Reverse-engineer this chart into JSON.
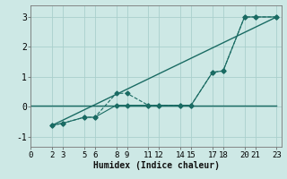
{
  "xlabel": "Humidex (Indice chaleur)",
  "background_color": "#cde8e5",
  "grid_color": "#aacfcc",
  "line_color": "#1a6b63",
  "xtick_positions": [
    0,
    2,
    3,
    5,
    6,
    8,
    9,
    11,
    12,
    14,
    15,
    17,
    18,
    20,
    21,
    23
  ],
  "xtick_labels": [
    "0",
    "2",
    "3",
    "5",
    "6",
    "8",
    "9",
    "11",
    "12",
    "14",
    "15",
    "17",
    "18",
    "20",
    "21",
    "23"
  ],
  "yticks": [
    -1,
    0,
    1,
    2,
    3
  ],
  "xlim": [
    0,
    23.5
  ],
  "ylim": [
    -1.35,
    3.4
  ],
  "lines": [
    {
      "x": [
        0,
        2,
        3,
        5,
        6,
        8,
        9,
        11,
        12,
        14,
        15,
        17,
        18,
        20,
        21,
        23
      ],
      "y": [
        0.05,
        0.05,
        0.05,
        0.05,
        0.05,
        0.05,
        0.05,
        0.05,
        0.05,
        0.05,
        0.05,
        0.05,
        0.05,
        0.05,
        0.05,
        0.05
      ],
      "marker": null,
      "linestyle": "-",
      "linewidth": 1.0,
      "zorder": 2
    },
    {
      "x": [
        2,
        23
      ],
      "y": [
        -0.62,
        3.0
      ],
      "marker": null,
      "linestyle": "-",
      "linewidth": 1.0,
      "zorder": 2
    },
    {
      "x": [
        2,
        3,
        5,
        6,
        8,
        9,
        11,
        12,
        14,
        15,
        17,
        18,
        20,
        21,
        23
      ],
      "y": [
        -0.62,
        -0.55,
        -0.35,
        -0.35,
        0.45,
        0.45,
        0.05,
        0.05,
        0.05,
        0.05,
        1.15,
        1.2,
        3.0,
        3.0,
        3.0
      ],
      "marker": "D",
      "linestyle": "--",
      "linewidth": 0.8,
      "zorder": 3
    },
    {
      "x": [
        2,
        3,
        5,
        6,
        8,
        9,
        11,
        12,
        14,
        15,
        17,
        18,
        20,
        21,
        23
      ],
      "y": [
        -0.62,
        -0.55,
        -0.35,
        -0.35,
        0.05,
        0.05,
        0.05,
        0.05,
        0.05,
        0.05,
        1.15,
        1.2,
        3.0,
        3.0,
        3.0
      ],
      "marker": "D",
      "linestyle": "-",
      "linewidth": 0.8,
      "zorder": 3
    }
  ]
}
